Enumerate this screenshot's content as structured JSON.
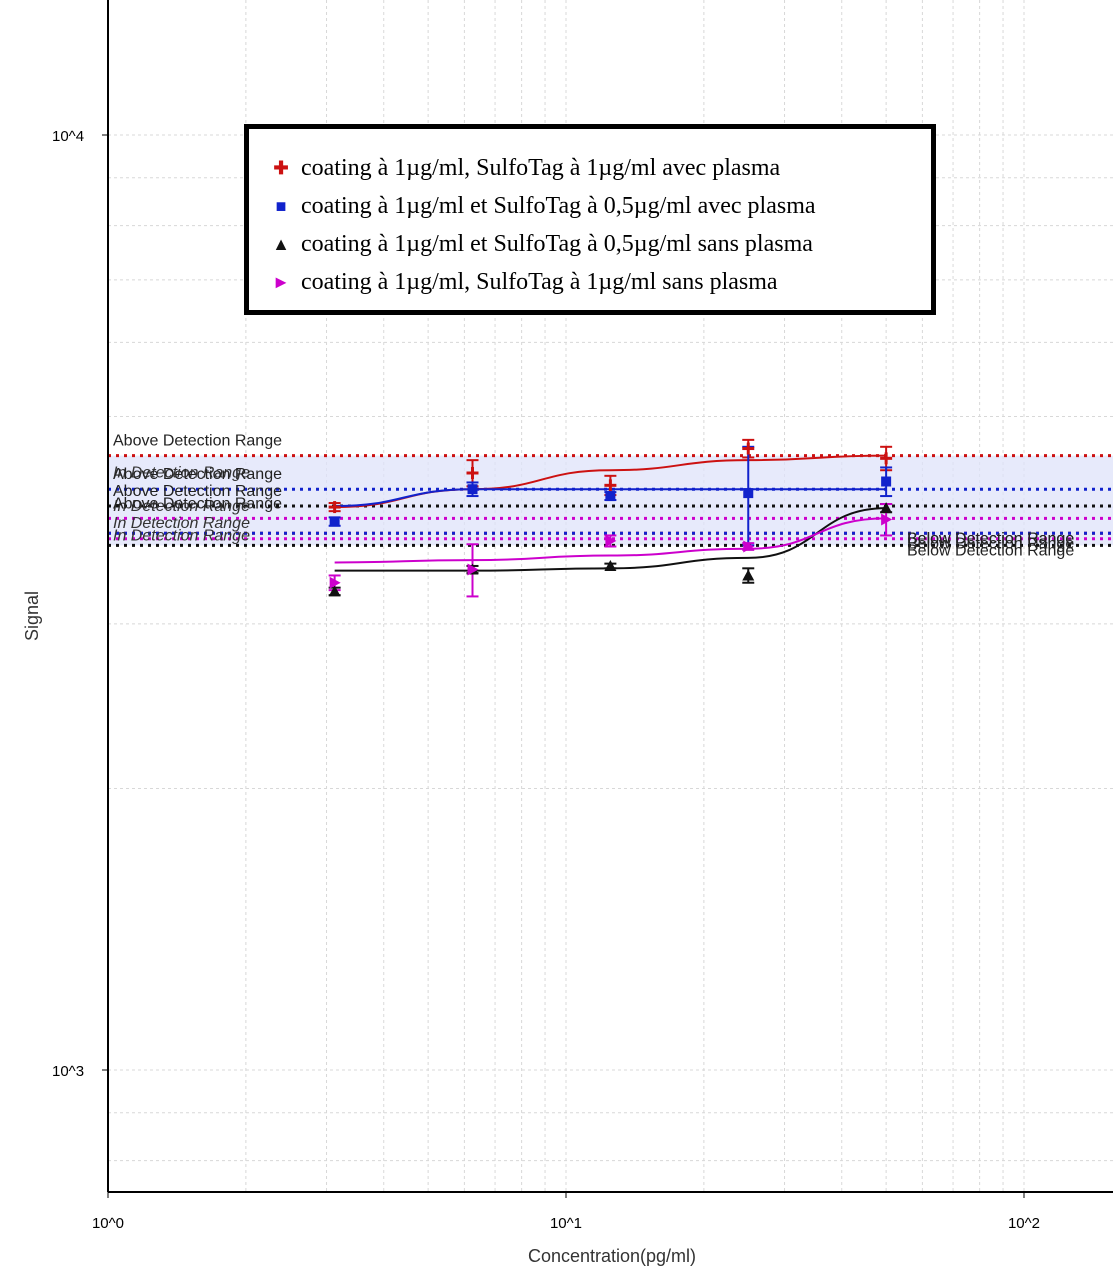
{
  "chart_data": {
    "type": "scatter",
    "xlabel": "Concentration(pg/ml)",
    "ylabel": "Signal",
    "x_scale": "log",
    "y_scale": "log",
    "xlim": [
      1,
      150
    ],
    "ylim": [
      800,
      20000
    ],
    "x_ticks": [
      "10^0",
      "10^1",
      "10^2"
    ],
    "y_ticks": [
      "10^4",
      "10^3"
    ],
    "grid": true,
    "legend_position": "top-center",
    "series": [
      {
        "name": "coating à 1µg/ml, SulfoTag à 1µg/ml avec plasma",
        "color": "#cc1111",
        "marker": "plus",
        "x": [
          3.125,
          6.25,
          12.5,
          25,
          50
        ],
        "y": [
          4000,
          4350,
          4220,
          4620,
          4510
        ],
        "err": [
          40,
          140,
          100,
          100,
          130
        ],
        "curve_y": [
          4000,
          4180,
          4380,
          4490,
          4540
        ],
        "detection_range": [
          3750,
          4540
        ],
        "above_label": "Above Detection Range",
        "in_label": "In Detection Range",
        "below_label": "Below Detection Range"
      },
      {
        "name": "coating à 1µg/ml et SulfoTag à 0,5µg/ml avec plasma",
        "color": "#1122cc",
        "marker": "square",
        "x": [
          3.125,
          6.25,
          12.5,
          25,
          50
        ],
        "y": [
          3860,
          4180,
          4110,
          4140,
          4260
        ],
        "err": [
          40,
          70,
          40,
          500,
          150
        ],
        "curve_y": [
          4010,
          4180,
          4180,
          4180,
          4180
        ],
        "detection_range": [
          3750,
          4180
        ],
        "above_label": "Above Detection Range",
        "in_label": "In Detection Range",
        "below_label": "Below Detection Range"
      },
      {
        "name": "coating à 1µg/ml et SulfoTag à 0,5µg/ml sans plasma",
        "color": "#111111",
        "marker": "triangle",
        "x": [
          3.125,
          6.25,
          12.5,
          25,
          50
        ],
        "y": [
          3250,
          3430,
          3460,
          3380,
          3990
        ],
        "err": [
          30,
          30,
          20,
          60,
          40
        ],
        "curve_y": [
          3420,
          3420,
          3440,
          3530,
          3990
        ],
        "detection_range": [
          3640,
          4010
        ],
        "above_label": "Above Detection Range",
        "in_label": "In Detection Range",
        "below_label": "Below Detection Range"
      },
      {
        "name": "coating à 1µg/ml, SulfoTag à 1µg/ml sans plasma",
        "color": "#cc00cc",
        "marker": "triangle-right",
        "x": [
          3.125,
          6.25,
          12.5,
          25,
          50
        ],
        "y": [
          3320,
          3430,
          3680,
          3630,
          3880
        ],
        "err": [
          60,
          220,
          50,
          30,
          150
        ],
        "curve_y": [
          3490,
          3510,
          3550,
          3610,
          3890
        ],
        "detection_range": [
          3700,
          3890
        ],
        "above_label": "Above Detection Range",
        "in_label": "In Detection Range",
        "below_label": "Below Detection Range"
      }
    ]
  }
}
